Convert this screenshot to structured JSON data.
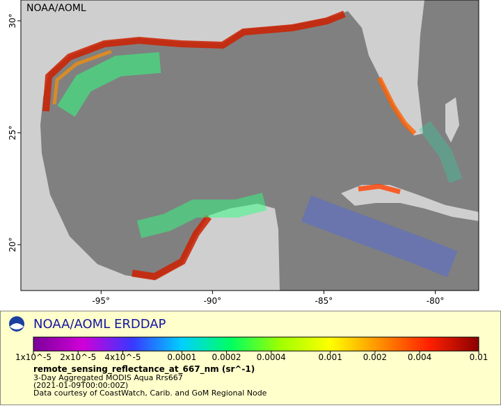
{
  "map": {
    "attribution": "NOAA/AOML",
    "xlim": [
      -98.6,
      -78.05
    ],
    "ylim": [
      17.95,
      30.93
    ],
    "xticks": [
      {
        "value": -95,
        "label": "-95°"
      },
      {
        "value": -90,
        "label": "-90°"
      },
      {
        "value": -85,
        "label": "-85°"
      },
      {
        "value": -80,
        "label": "-80°"
      }
    ],
    "yticks": [
      {
        "value": 30,
        "label": "30°"
      },
      {
        "value": 25,
        "label": "25°"
      },
      {
        "value": 20,
        "label": "20°"
      }
    ]
  },
  "legend": {
    "title": "NOAA/AOML ERDDAP",
    "colorbar": {
      "scale": "log",
      "lim": [
        1e-05,
        0.01
      ],
      "colors": [
        "#7a0099",
        "#d000d8",
        "#3838ff",
        "#00d0ff",
        "#00ff60",
        "#a0ff00",
        "#ffff00",
        "#ff9000",
        "#ff2000",
        "#8b0000"
      ],
      "ticks": [
        {
          "value": 1e-05,
          "label": "1x10^-5"
        },
        {
          "value": 2e-05,
          "label": "2x10^-5"
        },
        {
          "value": 4e-05,
          "label": "4x10^-5"
        },
        0.0001,
        0.0002,
        0.0004,
        0.001,
        0.002,
        0.004,
        0.01
      ]
    },
    "variable": "remote_sensing_reflectance_at_667_nm (sr^-1)",
    "dataset": "3-Day Aggregated MODIS Aqua Rrs667",
    "time": "(2021-01-09T00:00:00Z)",
    "credit": "Data courtesy of CoastWatch, Carib. and GoM Regional Node"
  }
}
